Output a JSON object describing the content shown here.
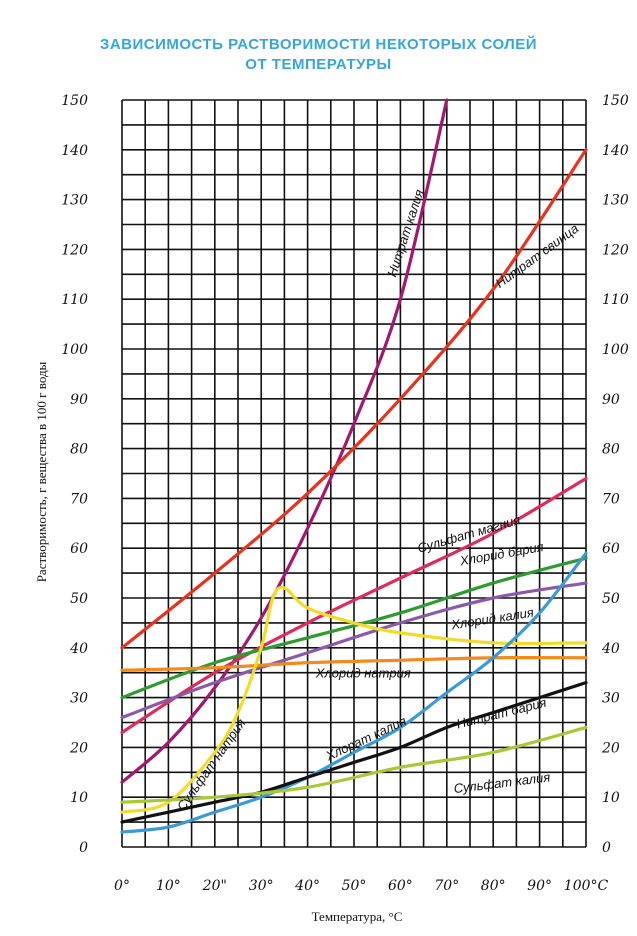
{
  "chart_data": {
    "type": "line",
    "title_line1": "ЗАВИСИМОСТЬ РАСТВОРИМОСТИ НЕКОТОРЫХ СОЛЕЙ",
    "title_line2": "ОТ ТЕМПЕРАТУРЫ",
    "xlabel": "Температура, °С",
    "ylabel": "Растворимость, г вещества в 100 г воды",
    "xlim": [
      0,
      100
    ],
    "ylim": [
      0,
      150
    ],
    "x_ticks": [
      "0°",
      "10°",
      "20\"",
      "30°",
      "40°",
      "50°",
      "60°",
      "70°",
      "80°",
      "90°",
      "100°C"
    ],
    "y_ticks": [
      "0",
      "10",
      "20",
      "30",
      "40",
      "50",
      "60",
      "70",
      "80",
      "90",
      "100",
      "110",
      "120",
      "130",
      "140",
      "150"
    ],
    "grid": true,
    "series": [
      {
        "name": "Нитрат калия",
        "color": "#a3176e",
        "x": [
          0,
          10,
          20,
          30,
          40,
          50,
          60,
          70
        ],
        "y": [
          13,
          21,
          32,
          46,
          64,
          85,
          110,
          150
        ]
      },
      {
        "name": "Нитрат свинца",
        "color": "#e8321e",
        "x": [
          0,
          20,
          40,
          60,
          80,
          100
        ],
        "y": [
          40,
          55,
          71,
          90,
          112,
          140
        ]
      },
      {
        "name": "Сульфат магния",
        "color": "#e02a5a",
        "x": [
          0,
          20,
          40,
          60,
          80,
          100
        ],
        "y": [
          23,
          35,
          45,
          54,
          63,
          74
        ]
      },
      {
        "name": "Хлорид бария",
        "color": "#2f9a2f",
        "x": [
          0,
          20,
          40,
          60,
          80,
          100
        ],
        "y": [
          30,
          37,
          42,
          47,
          53,
          58
        ]
      },
      {
        "name": "Хлорид калия",
        "color": "#8a5aa8",
        "x": [
          0,
          20,
          40,
          60,
          80,
          100
        ],
        "y": [
          26,
          33,
          39,
          45,
          50,
          53
        ]
      },
      {
        "name": "Хлорид натрия",
        "color": "#f28a1e",
        "x": [
          0,
          20,
          40,
          60,
          80,
          100
        ],
        "y": [
          35.5,
          36,
          37,
          37.5,
          38,
          38
        ]
      },
      {
        "name": "Сульфат натрия",
        "color": "#f2dc2a",
        "x": [
          0,
          10,
          20,
          25,
          30,
          32.5,
          35,
          40,
          50,
          60,
          80,
          100
        ],
        "y": [
          7,
          9,
          19,
          27,
          40,
          50,
          52,
          48,
          45,
          43,
          41,
          41
        ]
      },
      {
        "name": "Хлорат калия",
        "color": "#3a9ad8",
        "x": [
          0,
          10,
          20,
          30,
          40,
          50,
          60,
          70,
          80,
          90,
          100
        ],
        "y": [
          3,
          4,
          7,
          10,
          14,
          19,
          24,
          31,
          38,
          47,
          59
        ]
      },
      {
        "name": "Нитрат бария",
        "color": "#111111",
        "x": [
          0,
          10,
          20,
          30,
          40,
          50,
          60,
          70,
          80,
          90,
          100
        ],
        "y": [
          5,
          7,
          9,
          11,
          14,
          17,
          20,
          24,
          27,
          30,
          33
        ]
      },
      {
        "name": "Сульфат калия",
        "color": "#a8c83a",
        "x": [
          0,
          20,
          40,
          60,
          80,
          100
        ],
        "y": [
          9,
          10,
          12,
          16,
          19,
          24
        ]
      }
    ]
  }
}
